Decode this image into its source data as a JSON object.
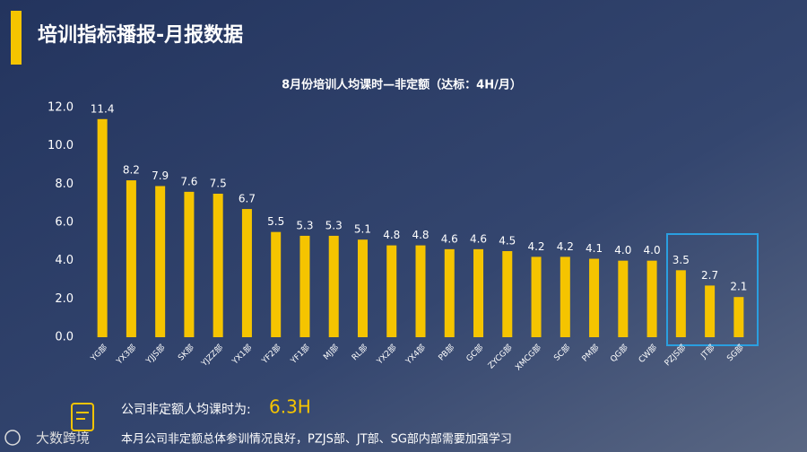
{
  "header": {
    "title": "培训指标播报-月报数据"
  },
  "chart_data": {
    "type": "bar",
    "title": "8月份培训人均课时—非定额（达标：4H/月）",
    "categories": [
      "YG部",
      "YX3部",
      "YJJS部",
      "SK部",
      "YJZZ部",
      "YX1部",
      "YF2部",
      "YF1部",
      "MJ部",
      "RL部",
      "YX2部",
      "YX4部",
      "PB部",
      "GC部",
      "ZYCG部",
      "XMCG部",
      "SC部",
      "PM部",
      "QG部",
      "CW部",
      "PZJS部",
      "JT部",
      "SG部"
    ],
    "values": [
      11.4,
      8.2,
      7.9,
      7.6,
      7.5,
      6.7,
      5.5,
      5.3,
      5.3,
      5.1,
      4.8,
      4.8,
      4.6,
      4.6,
      4.5,
      4.2,
      4.2,
      4.1,
      4.0,
      4.0,
      3.5,
      2.7,
      2.1
    ],
    "value_labels": [
      "11.4",
      "8.2",
      "7.9",
      "7.6",
      "7.5",
      "6.7",
      "5.5",
      "5.3",
      "5.3",
      "5.1",
      "4.8",
      "4.8",
      "4.6",
      "4.6",
      "4.5",
      "4.2",
      "4.2",
      "4.1",
      "4.0",
      "4.0",
      "3.5",
      "2.7",
      "2.1"
    ],
    "color": "#f5c400",
    "ylim": [
      0,
      12
    ],
    "yticks": [
      {
        "value": 0,
        "label": "0.0"
      },
      {
        "value": 2,
        "label": "2.0"
      },
      {
        "value": 4,
        "label": "4.0"
      },
      {
        "value": 6,
        "label": "6.0"
      },
      {
        "value": 8,
        "label": "8.0"
      },
      {
        "value": 10,
        "label": "10.0"
      },
      {
        "value": 12,
        "label": "12.0"
      }
    ],
    "grid": false
  },
  "summary": {
    "label": "公司非定额人均课时为:",
    "value": "6.3H",
    "note": "本月公司非定额总体参训情况良好，PZJS部、JT部、SG部内部需要加强学习"
  },
  "logo": {
    "text": "大数跨境"
  }
}
